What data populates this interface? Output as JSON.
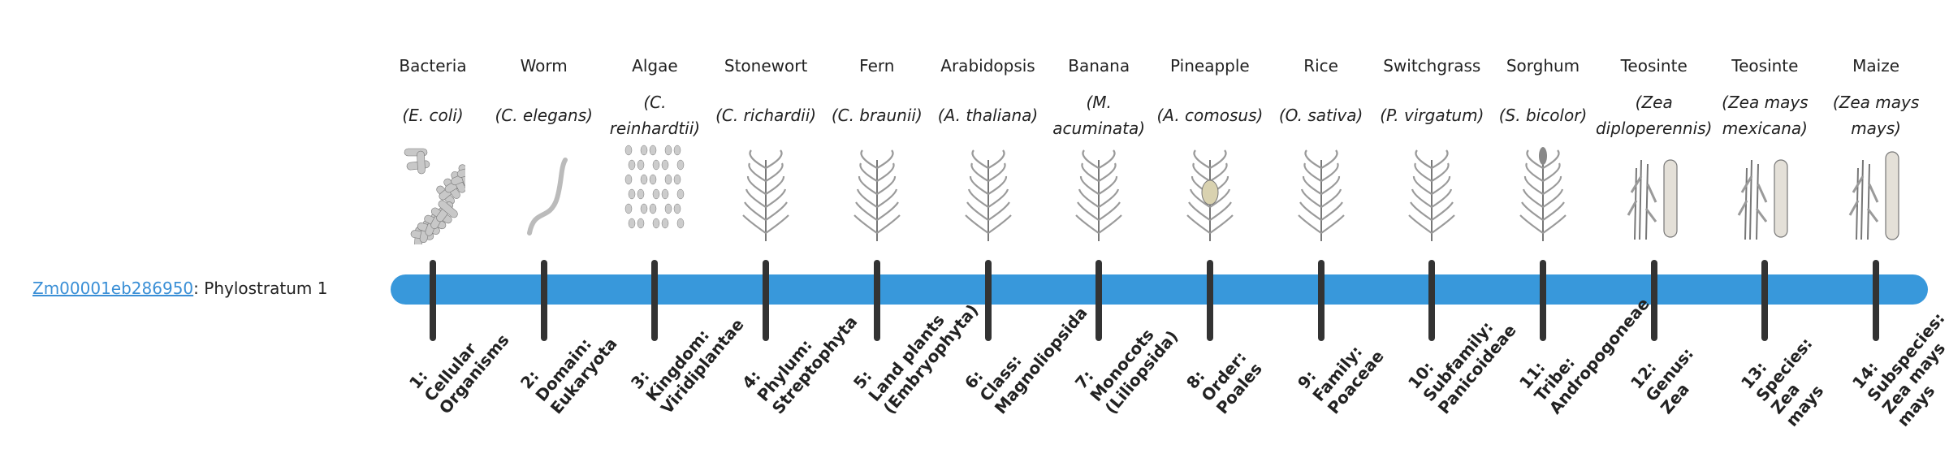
{
  "gene": {
    "id": "Zm00001eb286950",
    "suffix": ": Phylostratum 1"
  },
  "colors": {
    "bar": "#3898db",
    "tick": "#333333",
    "link": "#3a8fd6"
  },
  "strata": [
    {
      "common": "Bacteria",
      "sci": "(E. coli)",
      "rank": [
        "1:",
        "Cellular",
        "Organisms"
      ],
      "icon": "bacteria-icon"
    },
    {
      "common": "Worm",
      "sci": "(C. elegans)",
      "rank": [
        "2:",
        "Domain:",
        "Eukaryota"
      ],
      "icon": "worm-icon"
    },
    {
      "common": "Algae",
      "sci": "(C. reinhardtii)",
      "rank": [
        "3:",
        "Kingdom:",
        "Viridiplantae"
      ],
      "icon": "algae-icon"
    },
    {
      "common": "Stonewort",
      "sci": "(C. richardii)",
      "rank": [
        "4:",
        "Phylum:",
        "Streptophyta"
      ],
      "icon": "stonewort-icon"
    },
    {
      "common": "Fern",
      "sci": "(C. braunii)",
      "rank": [
        "5:",
        "Land plants",
        "(Embryophyta)"
      ],
      "icon": "fern-icon"
    },
    {
      "common": "Arabidopsis",
      "sci": "(A. thaliana)",
      "rank": [
        "6:",
        "Class:",
        "Magnoliopsida"
      ],
      "icon": "arabidopsis-icon"
    },
    {
      "common": "Banana",
      "sci": "(M. acuminata)",
      "rank": [
        "7:",
        "Monocots",
        "(Liliopsida)"
      ],
      "icon": "banana-icon"
    },
    {
      "common": "Pineapple",
      "sci": "(A. comosus)",
      "rank": [
        "8:",
        "Order:",
        "Poales"
      ],
      "icon": "pineapple-icon"
    },
    {
      "common": "Rice",
      "sci": "(O. sativa)",
      "rank": [
        "9:",
        "Family:",
        "Poaceae"
      ],
      "icon": "rice-icon"
    },
    {
      "common": "Switchgrass",
      "sci": "(P. virgatum)",
      "rank": [
        "10:",
        "Subfamily:",
        "Panicoideae"
      ],
      "icon": "switchgrass-icon"
    },
    {
      "common": "Sorghum",
      "sci": "(S. bicolor)",
      "rank": [
        "11:",
        "Tribe:",
        "Andropogoneae"
      ],
      "icon": "sorghum-icon"
    },
    {
      "common": "Teosinte",
      "sci": "(Zea diploperennis)",
      "rank": [
        "12:",
        "Genus:",
        "Zea"
      ],
      "icon": "teosinte-icon"
    },
    {
      "common": "Teosinte",
      "sci": "(Zea mays mexicana)",
      "rank": [
        "13:",
        "Species:",
        "Zea",
        "mays"
      ],
      "icon": "teosinte-icon"
    },
    {
      "common": "Maize",
      "sci": "(Zea mays mays)",
      "rank": [
        "14:",
        "Subspecies:",
        "Zea mays",
        "mays"
      ],
      "icon": "maize-icon"
    }
  ]
}
